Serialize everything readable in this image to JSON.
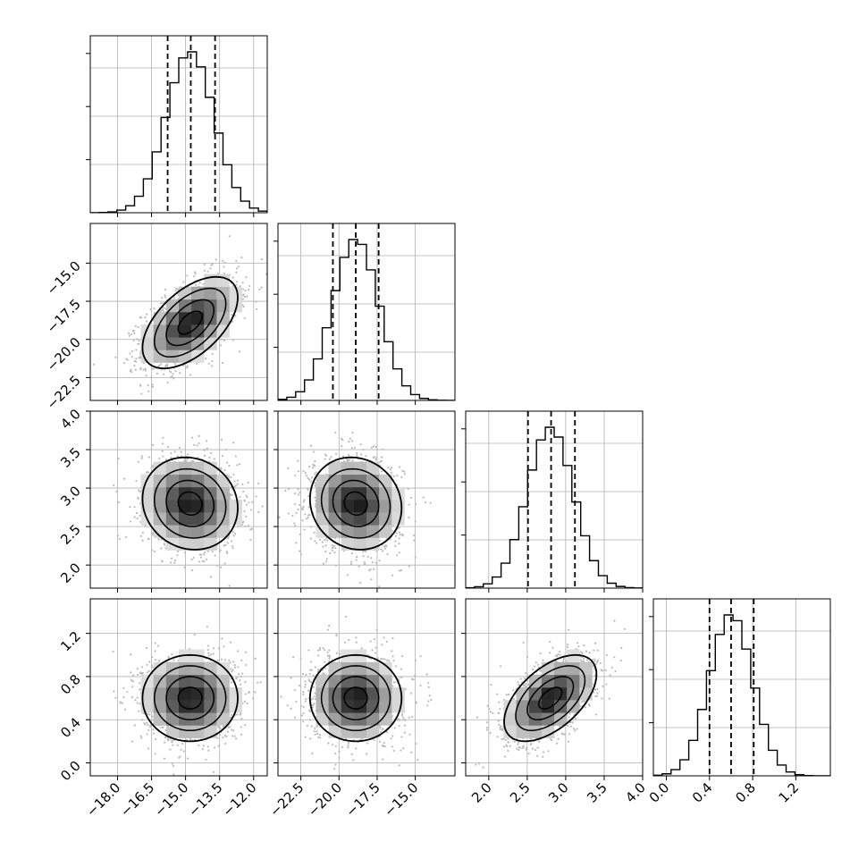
{
  "chart_data": {
    "type": "corner",
    "title": "",
    "parameters": [
      {
        "name": "",
        "range": [
          -19.2,
          -11.4
        ],
        "ticks": [
          -18.0,
          -16.5,
          -15.0,
          -13.5,
          -12.0
        ],
        "tick_labels": [
          "−18.0",
          "−16.5",
          "−15.0",
          "−13.5",
          "−12.0"
        ],
        "mean": -14.8,
        "sd": 1.05,
        "quantiles": [
          -15.79,
          -14.77,
          -13.7
        ]
      },
      {
        "name": "",
        "range": [
          -24.0,
          -12.4
        ],
        "ticks": [
          -22.5,
          -20.0,
          -17.5,
          -15.0
        ],
        "tick_labels": [
          "−22.5",
          "−20.0",
          "−17.5",
          "−15.0"
        ],
        "mean": -18.9,
        "sd": 1.5,
        "quantiles": [
          -20.4,
          -18.9,
          -17.4
        ]
      },
      {
        "name": "",
        "range": [
          1.7,
          4.0
        ],
        "ticks": [
          2.0,
          2.5,
          3.0,
          3.5,
          4.0
        ],
        "tick_labels": [
          "2.0",
          "2.5",
          "3.0",
          "3.5",
          "4.0"
        ],
        "mean": 2.8,
        "sd": 0.3,
        "quantiles": [
          2.51,
          2.81,
          3.12
        ]
      },
      {
        "name": "",
        "range": [
          -0.12,
          1.52
        ],
        "ticks": [
          0.0,
          0.4,
          0.8,
          1.2
        ],
        "tick_labels": [
          "0.0",
          "0.4",
          "0.8",
          "1.2"
        ],
        "mean": 0.6,
        "sd": 0.2,
        "quantiles": [
          0.4,
          0.6,
          0.81
        ]
      }
    ],
    "correlations": [
      {
        "row": 1,
        "col": 0,
        "rho": 0.55
      },
      {
        "row": 2,
        "col": 0,
        "rho": -0.1
      },
      {
        "row": 2,
        "col": 1,
        "rho": -0.1
      },
      {
        "row": 3,
        "col": 0,
        "rho": 0.0
      },
      {
        "row": 3,
        "col": 1,
        "rho": 0.0
      },
      {
        "row": 3,
        "col": 2,
        "rho": 0.55
      }
    ],
    "histogram_bins": 20,
    "contour_levels_sigma": [
      0.5,
      1.0,
      1.5,
      2.0
    ],
    "grid": true,
    "colors": {
      "hist": "#000000",
      "points": "#bbbbbb",
      "grid": "#b0b0b0"
    }
  }
}
